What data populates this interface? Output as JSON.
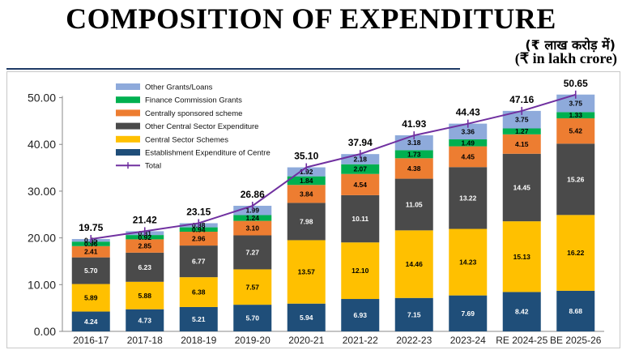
{
  "header": {
    "title": "COMPOSITION OF EXPENDITURE",
    "unit_hindi": "(₹ लाख करोड़ में)",
    "unit_english": "(₹ in lakh crore)"
  },
  "colors": {
    "Establishment Expenditure of Centre": "#1f4e79",
    "Central Sector Schemes": "#ffc000",
    "Other Central Sector Expenditure": "#4a4a4a",
    "Centrally sponsored scheme": "#ed7d31",
    "Finance Commission Grants": "#00b050",
    "Other Grants/Loans": "#8eaadb",
    "Total": "#7030a0"
  },
  "chart_data": {
    "type": "bar",
    "stacked": true,
    "categories": [
      "2016-17",
      "2017-18",
      "2018-19",
      "2019-20",
      "2020-21",
      "2021-22",
      "2022-23",
      "2023-24",
      "RE 2024-25",
      "BE 2025-26"
    ],
    "series": [
      {
        "name": "Establishment Expenditure of Centre",
        "values": [
          4.24,
          4.73,
          5.21,
          5.7,
          5.94,
          6.93,
          7.15,
          7.69,
          8.42,
          8.68
        ],
        "labels": [
          "4.24",
          "4.73",
          "5.21",
          "5.70",
          "5.94",
          "6.93",
          "7.15",
          "7.69",
          "8.42",
          "8.68"
        ]
      },
      {
        "name": "Central Sector Schemes",
        "values": [
          5.89,
          5.88,
          6.38,
          7.57,
          13.57,
          12.1,
          14.46,
          14.23,
          15.13,
          16.22
        ],
        "labels": [
          "5.89",
          "5.88",
          "6.38",
          "7.57",
          "13.57",
          "12.10",
          "14.46",
          "14.23",
          "15.13",
          "16.22"
        ]
      },
      {
        "name": "Other Central Sector Expenditure",
        "values": [
          5.7,
          6.23,
          6.77,
          7.27,
          7.98,
          10.11,
          11.05,
          13.22,
          14.45,
          15.26
        ],
        "labels": [
          "5.70",
          "6.23",
          "6.77",
          "7.27",
          "7.98",
          "10.11",
          "11.05",
          "13.22",
          "14.45",
          "15.26"
        ]
      },
      {
        "name": "Centrally sponsored scheme",
        "values": [
          2.41,
          2.85,
          2.96,
          3.1,
          3.84,
          4.54,
          4.38,
          4.45,
          4.15,
          5.42
        ],
        "labels": [
          "2.41",
          "2.85",
          "2.96",
          "3.10",
          "3.84",
          "4.54",
          "4.38",
          "4.45",
          "4.15",
          "5.42"
        ]
      },
      {
        "name": "Finance Commission Grants",
        "values": [
          0.96,
          0.92,
          0.94,
          1.24,
          1.84,
          2.07,
          1.73,
          1.49,
          1.27,
          1.33
        ],
        "labels": [
          "0.96",
          "0.92",
          "0.94",
          "1.24",
          "1.84",
          "2.07",
          "1.73",
          "1.49",
          "1.27",
          "1.33"
        ]
      },
      {
        "name": "Other Grants/Loans",
        "values": [
          0.55,
          0.81,
          0.88,
          1.99,
          1.92,
          2.18,
          3.18,
          3.36,
          3.75,
          3.75
        ],
        "labels": [
          "0.55",
          "0.81",
          "0.88",
          "1.99",
          "1.92",
          "2.18",
          "3.18",
          "3.36",
          "3.75",
          "3.75"
        ]
      }
    ],
    "line": {
      "name": "Total",
      "values": [
        19.75,
        21.42,
        23.15,
        26.86,
        35.1,
        37.94,
        41.93,
        44.43,
        47.16,
        50.65
      ],
      "labels": [
        "19.75",
        "21.42",
        "23.15",
        "26.86",
        "35.10",
        "37.94",
        "41.93",
        "44.43",
        "47.16",
        "50.65"
      ]
    },
    "y_ticks": [
      "0.00",
      "10.00",
      "20.00",
      "30.00",
      "40.00",
      "50.00"
    ],
    "ylim": [
      0,
      52
    ],
    "legend_order": [
      "Other Grants/Loans",
      "Finance Commission Grants",
      "Centrally sponsored scheme",
      "Other Central Sector Expenditure",
      "Central Sector Schemes",
      "Establishment Expenditure of Centre",
      "Total"
    ],
    "legend_position": "top-left",
    "grid": false
  }
}
